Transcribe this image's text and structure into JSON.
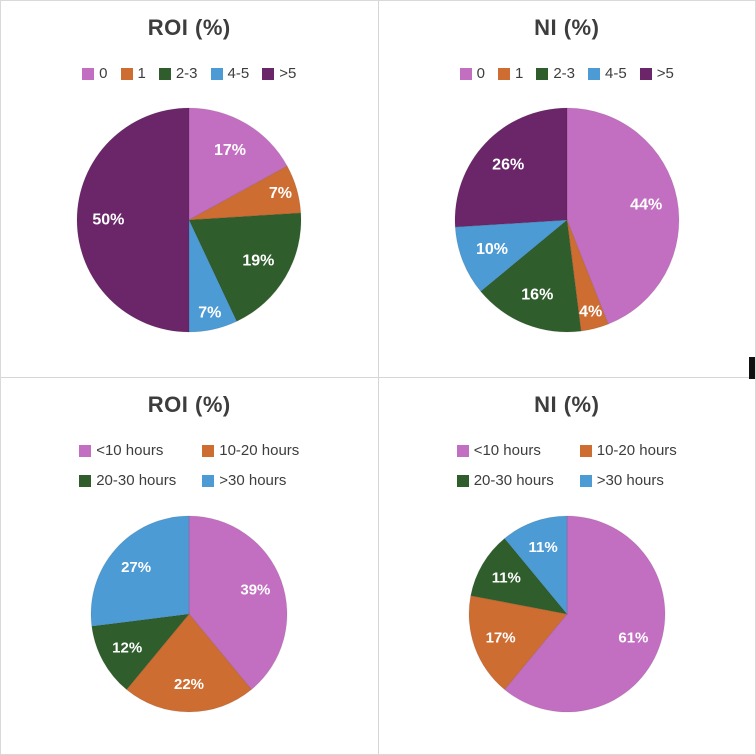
{
  "page": {
    "background": "#ffffff",
    "divider_color": "#d6d6d6",
    "title_color": "#3d3d3d",
    "legend_text_color": "#3d3d3d"
  },
  "chart_data": [
    {
      "type": "pie",
      "title": "ROI (%)",
      "labels": [
        "0",
        "1",
        "2-3",
        "4-5",
        ">5"
      ],
      "values": [
        17,
        7,
        19,
        7,
        50
      ],
      "unit": "%",
      "colors": [
        "#c36fc1",
        "#cd6d32",
        "#2f5e2c",
        "#4d9bd5",
        "#6a2668"
      ],
      "label_color": "#ffffff",
      "legend_position": "top",
      "start_angle": "12-oclock",
      "direction": "clockwise"
    },
    {
      "type": "pie",
      "title": "NI (%)",
      "labels": [
        "0",
        "1",
        "2-3",
        "4-5",
        ">5"
      ],
      "values": [
        44,
        4,
        16,
        10,
        26
      ],
      "unit": "%",
      "colors": [
        "#c36fc1",
        "#cd6d32",
        "#2f5e2c",
        "#4d9bd5",
        "#6a2668"
      ],
      "label_color": "#ffffff",
      "legend_position": "top",
      "start_angle": "12-oclock",
      "direction": "clockwise"
    },
    {
      "type": "pie",
      "title": "ROI (%)",
      "labels": [
        "<10 hours",
        "10-20 hours",
        "20-30 hours",
        ">30 hours"
      ],
      "values": [
        39,
        22,
        12,
        27
      ],
      "unit": "%",
      "colors": [
        "#c36fc1",
        "#cd6d32",
        "#2f5e2c",
        "#4d9bd5"
      ],
      "label_color": "#ffffff",
      "legend_position": "top",
      "start_angle": "12-oclock",
      "direction": "clockwise"
    },
    {
      "type": "pie",
      "title": "NI (%)",
      "labels": [
        "<10 hours",
        "10-20 hours",
        "20-30 hours",
        ">30 hours"
      ],
      "values": [
        61,
        17,
        11,
        11
      ],
      "unit": "%",
      "colors": [
        "#c36fc1",
        "#cd6d32",
        "#2f5e2c",
        "#4d9bd5"
      ],
      "label_color": "#ffffff",
      "legend_position": "top",
      "start_angle": "12-oclock",
      "direction": "clockwise"
    }
  ]
}
